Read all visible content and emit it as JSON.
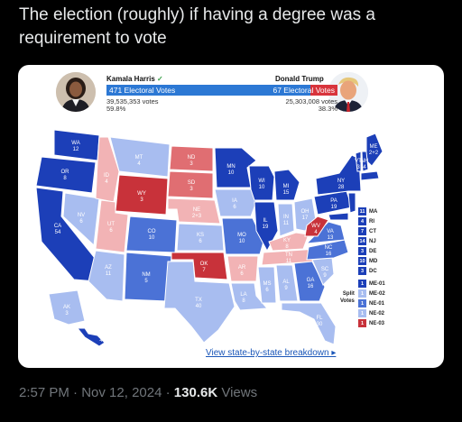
{
  "tweet": {
    "text": "The election (roughly) if having a degree was a requirement to vote",
    "time": "2:57 PM",
    "date": "Nov 12, 2024",
    "views_count": "130.6K",
    "views_label": "Views",
    "separator": "·"
  },
  "card": {
    "harris": {
      "name": "Kamala Harris",
      "ev": "471 Electoral Votes",
      "votes": "39,535,353 votes",
      "pct": "59.8%"
    },
    "trump": {
      "name": "Donald Trump",
      "ev_prefix": "67 Electoral ",
      "ev_suffix": "Votes",
      "votes": "25,303,008 votes",
      "pct": "38.3%"
    },
    "breakdown_link": "View state-by-state breakdown",
    "colors": {
      "dem_dark": "#1c3fb8",
      "dem_mid": "#4b72d6",
      "dem_light": "#a8bdf0",
      "rep_dark": "#c8323a",
      "rep_mid": "#e06e72",
      "rep_light": "#f2b3b5"
    }
  },
  "states": {
    "WA": "WA\n12",
    "OR": "OR\n8",
    "CA": "CA\n54",
    "NV": "NV\n6",
    "ID": "ID\n4",
    "MT": "MT\n4",
    "WY": "WY\n3",
    "UT": "UT\n6",
    "AZ": "AZ\n11",
    "CO": "CO\n10",
    "NM": "NM\n5",
    "ND": "ND\n3",
    "SD": "SD\n3",
    "NE": "NE\n2+3",
    "KS": "KS\n6",
    "OK": "OK\n7",
    "TX": "TX\n40",
    "MN": "MN\n10",
    "IA": "IA\n6",
    "MO": "MO\n10",
    "AR": "AR\n6",
    "LA": "LA\n8",
    "WI": "WI\n10",
    "IL": "IL\n19",
    "MI": "MI\n15",
    "IN": "IN\n11",
    "OH": "OH\n17",
    "KY": "KY\n8",
    "TN": "TN\n11",
    "MS": "MS\n6",
    "AL": "AL\n9",
    "GA": "GA\n16",
    "FL": "FL\n30",
    "SC": "SC\n9",
    "NC": "NC\n16",
    "VA": "VA\n13",
    "WV": "WV\n4",
    "PA": "PA\n19",
    "NY": "NY\n28",
    "ME": "ME\n2+2",
    "VT": "VT\n3",
    "NH": "NH\n4",
    "AK": "AK\n3",
    "HI": "HI\n4"
  },
  "legend": [
    {
      "num": "11",
      "st": "MA"
    },
    {
      "num": "4",
      "st": "RI"
    },
    {
      "num": "7",
      "st": "CT"
    },
    {
      "num": "14",
      "st": "NJ"
    },
    {
      "num": "3",
      "st": "DE"
    },
    {
      "num": "10",
      "st": "MD"
    },
    {
      "num": "3",
      "st": "DC"
    }
  ],
  "split": {
    "label1": "Split",
    "label2": "Votes",
    "items": [
      {
        "num": "1",
        "st": "ME-01"
      },
      {
        "num": "1",
        "st": "ME-02"
      },
      {
        "num": "1",
        "st": "NE-01"
      },
      {
        "num": "1",
        "st": "NE-02"
      },
      {
        "num": "1",
        "st": "NE-03"
      }
    ]
  }
}
